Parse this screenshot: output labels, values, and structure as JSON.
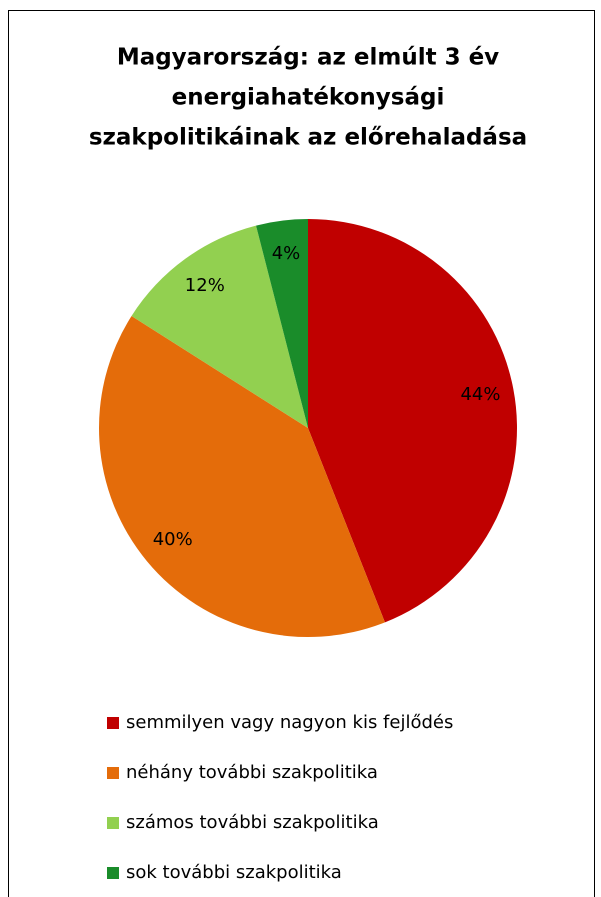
{
  "chart_data": {
    "type": "pie",
    "title": [
      "Magyarország: az elmúlt 3 év",
      "energiahatékonysági",
      "szakpolitikáinak az előrehaladása"
    ],
    "categories": [
      "semmilyen vagy nagyon kis fejlődés",
      "néhány további szakpolitika",
      "számos további szakpolitika",
      "sok további szakpolitika"
    ],
    "values": [
      44,
      40,
      12,
      4
    ],
    "value_labels": [
      "44%",
      "40%",
      "12%",
      "4%"
    ],
    "colors": [
      "#c00000",
      "#e46c0a",
      "#92d050",
      "#1a8c2a"
    ],
    "legend": "bottom"
  }
}
